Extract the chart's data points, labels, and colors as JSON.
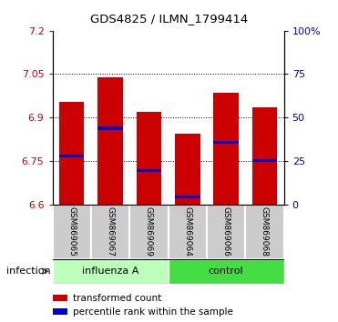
{
  "title": "GDS4825 / ILMN_1799414",
  "samples": [
    "GSM869065",
    "GSM869067",
    "GSM869069",
    "GSM869064",
    "GSM869066",
    "GSM869068"
  ],
  "groups": [
    "influenza A",
    "influenza A",
    "influenza A",
    "control",
    "control",
    "control"
  ],
  "group_labels": [
    "influenza A",
    "control"
  ],
  "group_colors": [
    "#bbffbb",
    "#44dd44"
  ],
  "bar_bottoms": [
    6.6,
    6.6,
    6.6,
    6.6,
    6.6,
    6.6
  ],
  "bar_tops": [
    6.955,
    7.04,
    6.92,
    6.845,
    6.985,
    6.935
  ],
  "percentile_values": [
    6.768,
    6.863,
    6.718,
    6.626,
    6.815,
    6.752
  ],
  "ylim_left": [
    6.6,
    7.2
  ],
  "yticks_left": [
    6.6,
    6.75,
    6.9,
    7.05,
    7.2
  ],
  "ytick_labels_left": [
    "6.6",
    "6.75",
    "6.9",
    "7.05",
    "7.2"
  ],
  "ylim_right": [
    0,
    100
  ],
  "yticks_right": [
    0,
    25,
    50,
    75,
    100
  ],
  "ytick_labels_right": [
    "0",
    "25",
    "50",
    "75",
    "100%"
  ],
  "bar_color": "#cc0000",
  "percentile_color": "#0000cc",
  "bar_width": 0.65,
  "xlabel_group": "infection",
  "legend_items": [
    "transformed count",
    "percentile rank within the sample"
  ],
  "legend_colors": [
    "#cc0000",
    "#0000cc"
  ],
  "sample_bg_color": "#cccccc",
  "left_tick_color": "#cc0000",
  "right_tick_color": "#0000bb",
  "grid_linestyle": "dotted"
}
